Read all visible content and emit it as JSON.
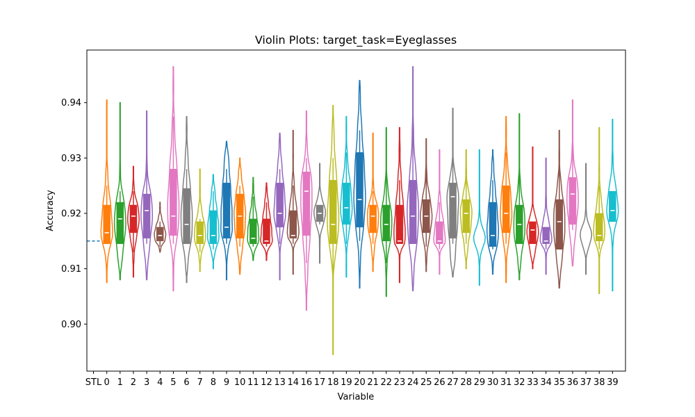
{
  "chart_data": {
    "type": "violin",
    "title": "Violin Plots: target_task=Eyeglasses",
    "xlabel": "Variable",
    "ylabel": "Accuracy",
    "ylim": [
      0.8915,
      0.9495
    ],
    "yticks": [
      "0.90",
      "0.91",
      "0.92",
      "0.93",
      "0.94"
    ],
    "categories": [
      "STL",
      "0",
      "1",
      "2",
      "3",
      "4",
      "5",
      "6",
      "7",
      "8",
      "9",
      "10",
      "11",
      "12",
      "13",
      "14",
      "16",
      "17",
      "18",
      "19",
      "20",
      "21",
      "22",
      "23",
      "24",
      "25",
      "26",
      "27",
      "28",
      "29",
      "30",
      "31",
      "32",
      "33",
      "34",
      "35",
      "36",
      "37",
      "38",
      "39"
    ],
    "baseline": {
      "category": "STL",
      "value": 0.915
    },
    "colors": [
      "#ff7f0e",
      "#2ca02c",
      "#d62728",
      "#9467bd",
      "#8c564b",
      "#e377c2",
      "#7f7f7f",
      "#bcbd22",
      "#17becf",
      "#1f77b4"
    ],
    "series": [
      {
        "category": "0",
        "min": 0.9075,
        "max": 0.9405,
        "q1": 0.9145,
        "median": 0.9165,
        "q3": 0.9215,
        "whisker_low": 0.9145,
        "whisker_high": 0.925
      },
      {
        "category": "1",
        "min": 0.908,
        "max": 0.94,
        "q1": 0.9145,
        "median": 0.919,
        "q3": 0.922,
        "whisker_low": 0.9145,
        "whisker_high": 0.924
      },
      {
        "category": "2",
        "min": 0.9085,
        "max": 0.9285,
        "q1": 0.9165,
        "median": 0.9195,
        "q3": 0.9215,
        "whisker_low": 0.913,
        "whisker_high": 0.924
      },
      {
        "category": "3",
        "min": 0.908,
        "max": 0.9385,
        "q1": 0.9155,
        "median": 0.9205,
        "q3": 0.9235,
        "whisker_low": 0.9145,
        "whisker_high": 0.931
      },
      {
        "category": "4",
        "min": 0.913,
        "max": 0.922,
        "q1": 0.915,
        "median": 0.916,
        "q3": 0.9175,
        "whisker_low": 0.914,
        "whisker_high": 0.9185
      },
      {
        "category": "5",
        "min": 0.906,
        "max": 0.9465,
        "q1": 0.916,
        "median": 0.9195,
        "q3": 0.928,
        "whisker_low": 0.9145,
        "whisker_high": 0.9375
      },
      {
        "category": "6",
        "min": 0.9075,
        "max": 0.9375,
        "q1": 0.9145,
        "median": 0.918,
        "q3": 0.9245,
        "whisker_low": 0.9145,
        "whisker_high": 0.928
      },
      {
        "category": "7",
        "min": 0.9095,
        "max": 0.928,
        "q1": 0.9145,
        "median": 0.916,
        "q3": 0.9185,
        "whisker_low": 0.913,
        "whisker_high": 0.919
      },
      {
        "category": "8",
        "min": 0.91,
        "max": 0.927,
        "q1": 0.9145,
        "median": 0.916,
        "q3": 0.9205,
        "whisker_low": 0.9135,
        "whisker_high": 0.924
      },
      {
        "category": "9",
        "min": 0.908,
        "max": 0.933,
        "q1": 0.9155,
        "median": 0.9175,
        "q3": 0.9255,
        "whisker_low": 0.9145,
        "whisker_high": 0.928
      },
      {
        "category": "10",
        "min": 0.909,
        "max": 0.93,
        "q1": 0.9155,
        "median": 0.9195,
        "q3": 0.9235,
        "whisker_low": 0.914,
        "whisker_high": 0.925
      },
      {
        "category": "11",
        "min": 0.9115,
        "max": 0.9265,
        "q1": 0.9145,
        "median": 0.9155,
        "q3": 0.919,
        "whisker_low": 0.914,
        "whisker_high": 0.923
      },
      {
        "category": "12",
        "min": 0.9115,
        "max": 0.9255,
        "q1": 0.9145,
        "median": 0.915,
        "q3": 0.919,
        "whisker_low": 0.914,
        "whisker_high": 0.922
      },
      {
        "category": "13",
        "min": 0.908,
        "max": 0.9345,
        "q1": 0.9175,
        "median": 0.92,
        "q3": 0.9255,
        "whisker_low": 0.9145,
        "whisker_high": 0.928
      },
      {
        "category": "14",
        "min": 0.909,
        "max": 0.935,
        "q1": 0.9155,
        "median": 0.916,
        "q3": 0.9205,
        "whisker_low": 0.9145,
        "whisker_high": 0.925
      },
      {
        "category": "16",
        "min": 0.9025,
        "max": 0.9385,
        "q1": 0.916,
        "median": 0.924,
        "q3": 0.9275,
        "whisker_low": 0.911,
        "whisker_high": 0.93
      },
      {
        "category": "17",
        "min": 0.911,
        "max": 0.929,
        "q1": 0.9185,
        "median": 0.92,
        "q3": 0.9215,
        "whisker_low": 0.918,
        "whisker_high": 0.9215
      },
      {
        "category": "18",
        "min": 0.8945,
        "max": 0.9395,
        "q1": 0.9145,
        "median": 0.918,
        "q3": 0.926,
        "whisker_low": 0.904,
        "whisker_high": 0.93
      },
      {
        "category": "19",
        "min": 0.9085,
        "max": 0.9375,
        "q1": 0.918,
        "median": 0.921,
        "q3": 0.9255,
        "whisker_low": 0.9145,
        "whisker_high": 0.931
      },
      {
        "category": "20",
        "min": 0.9065,
        "max": 0.944,
        "q1": 0.9175,
        "median": 0.9225,
        "q3": 0.931,
        "whisker_low": 0.915,
        "whisker_high": 0.935
      },
      {
        "category": "21",
        "min": 0.9095,
        "max": 0.9345,
        "q1": 0.9165,
        "median": 0.9195,
        "q3": 0.9215,
        "whisker_low": 0.9145,
        "whisker_high": 0.924
      },
      {
        "category": "22",
        "min": 0.905,
        "max": 0.9355,
        "q1": 0.915,
        "median": 0.918,
        "q3": 0.9215,
        "whisker_low": 0.911,
        "whisker_high": 0.929
      },
      {
        "category": "23",
        "min": 0.9075,
        "max": 0.9355,
        "q1": 0.9145,
        "median": 0.915,
        "q3": 0.9215,
        "whisker_low": 0.9145,
        "whisker_high": 0.926
      },
      {
        "category": "24",
        "min": 0.906,
        "max": 0.9465,
        "q1": 0.9145,
        "median": 0.9195,
        "q3": 0.926,
        "whisker_low": 0.9145,
        "whisker_high": 0.9375
      },
      {
        "category": "25",
        "min": 0.9095,
        "max": 0.9335,
        "q1": 0.9165,
        "median": 0.9195,
        "q3": 0.9225,
        "whisker_low": 0.914,
        "whisker_high": 0.928
      },
      {
        "category": "26",
        "min": 0.909,
        "max": 0.9315,
        "q1": 0.9145,
        "median": 0.915,
        "q3": 0.9185,
        "whisker_low": 0.9135,
        "whisker_high": 0.922
      },
      {
        "category": "27",
        "min": 0.9085,
        "max": 0.939,
        "q1": 0.9155,
        "median": 0.923,
        "q3": 0.9255,
        "whisker_low": 0.9145,
        "whisker_high": 0.932
      },
      {
        "category": "28",
        "min": 0.91,
        "max": 0.9315,
        "q1": 0.9165,
        "median": 0.92,
        "q3": 0.9225,
        "whisker_low": 0.9145,
        "whisker_high": 0.927
      },
      {
        "category": "29",
        "min": 0.907,
        "max": 0.9315,
        "q1": null,
        "median": null,
        "q3": null,
        "whisker_low": null,
        "whisker_high": null
      },
      {
        "category": "30",
        "min": 0.909,
        "max": 0.9315,
        "q1": 0.914,
        "median": 0.916,
        "q3": 0.922,
        "whisker_low": 0.9135,
        "whisker_high": 0.926
      },
      {
        "category": "31",
        "min": 0.9075,
        "max": 0.9375,
        "q1": 0.9165,
        "median": 0.92,
        "q3": 0.925,
        "whisker_low": 0.9145,
        "whisker_high": 0.931
      },
      {
        "category": "32",
        "min": 0.908,
        "max": 0.938,
        "q1": 0.9145,
        "median": 0.918,
        "q3": 0.9215,
        "whisker_low": 0.9145,
        "whisker_high": 0.927
      },
      {
        "category": "33",
        "min": 0.91,
        "max": 0.932,
        "q1": 0.9145,
        "median": 0.917,
        "q3": 0.9185,
        "whisker_low": 0.9145,
        "whisker_high": 0.9185
      },
      {
        "category": "34",
        "min": 0.909,
        "max": 0.93,
        "q1": 0.9145,
        "median": 0.915,
        "q3": 0.9175,
        "whisker_low": 0.9135,
        "whisker_high": 0.9175
      },
      {
        "category": "35",
        "min": 0.9065,
        "max": 0.935,
        "q1": 0.9135,
        "median": 0.9185,
        "q3": 0.9225,
        "whisker_low": 0.9135,
        "whisker_high": 0.928
      },
      {
        "category": "36",
        "min": 0.9105,
        "max": 0.9405,
        "q1": 0.918,
        "median": 0.9235,
        "q3": 0.9265,
        "whisker_low": 0.917,
        "whisker_high": 0.934
      },
      {
        "category": "37",
        "min": 0.909,
        "max": 0.929,
        "q1": null,
        "median": null,
        "q3": null,
        "whisker_low": null,
        "whisker_high": null
      },
      {
        "category": "38",
        "min": 0.9055,
        "max": 0.9355,
        "q1": 0.915,
        "median": 0.916,
        "q3": 0.92,
        "whisker_low": 0.9135,
        "whisker_high": 0.925
      },
      {
        "category": "39",
        "min": 0.906,
        "max": 0.937,
        "q1": 0.9185,
        "median": 0.9205,
        "q3": 0.924,
        "whisker_low": 0.9185,
        "whisker_high": 0.924
      }
    ],
    "grid": false,
    "legend": "none"
  }
}
